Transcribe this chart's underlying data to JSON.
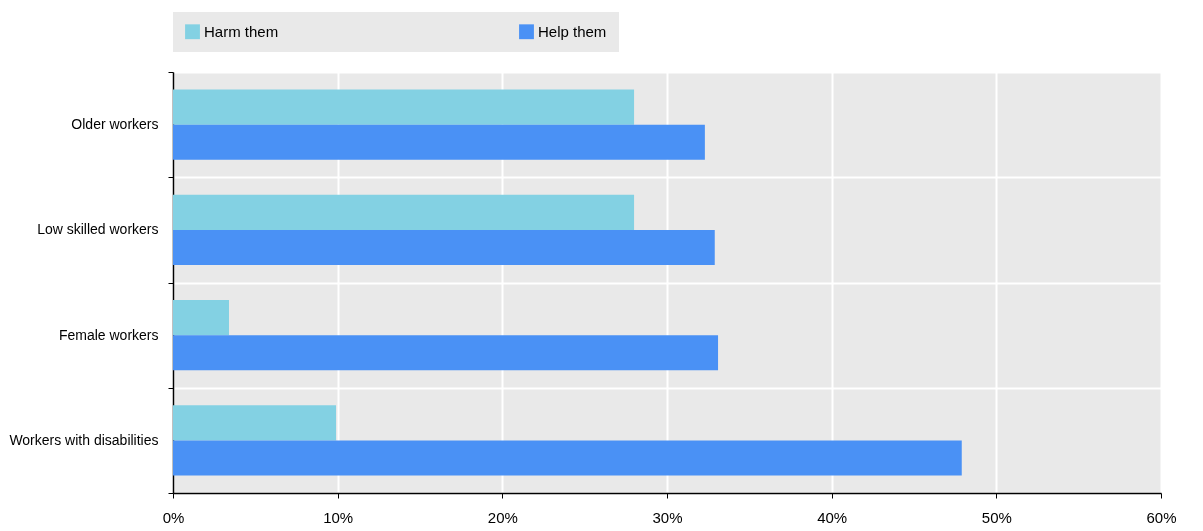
{
  "chart_data": {
    "type": "bar",
    "orientation": "horizontal",
    "categories": [
      "Older workers",
      "Low skilled workers",
      "Female workers",
      "Workers with disabilities"
    ],
    "series": [
      {
        "name": "Harm them",
        "color": "#83d1e3",
        "values": [
          28.0,
          28.0,
          3.4,
          9.9
        ]
      },
      {
        "name": "Help them",
        "color": "#4a91f5",
        "values": [
          32.3,
          32.9,
          33.1,
          47.9
        ]
      }
    ],
    "xlim": [
      0,
      60
    ],
    "xticks": [
      {
        "value": 0,
        "label": "0%"
      },
      {
        "value": 10,
        "label": "10%"
      },
      {
        "value": 20,
        "label": "20%"
      },
      {
        "value": 30,
        "label": "30%"
      },
      {
        "value": 40,
        "label": "40%"
      },
      {
        "value": 50,
        "label": "50%"
      },
      {
        "value": 60,
        "label": "60%"
      }
    ],
    "grid": true,
    "legend": "top"
  }
}
